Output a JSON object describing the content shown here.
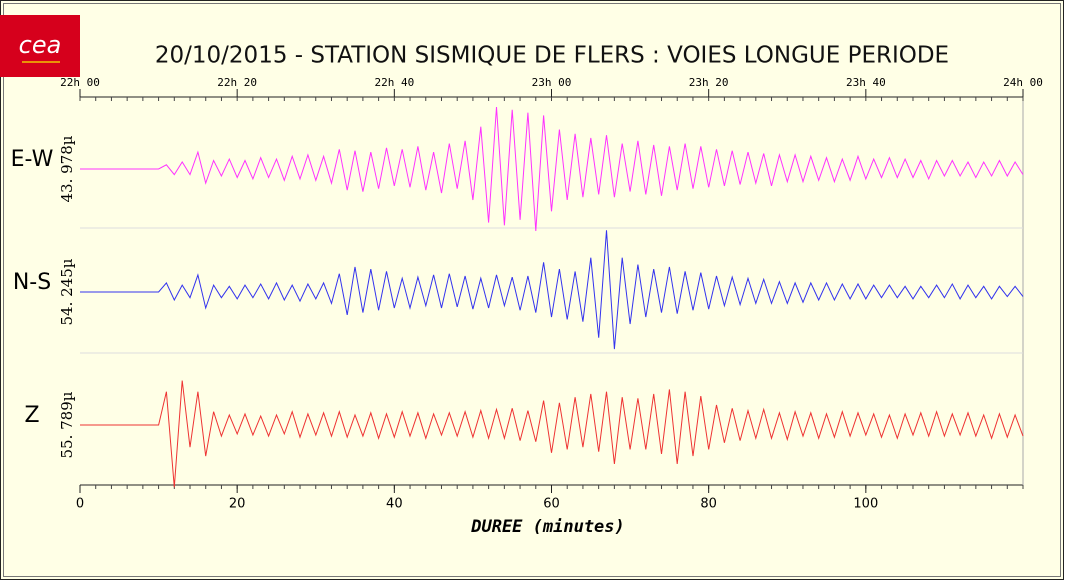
{
  "logo": "cea",
  "chart_data": {
    "type": "seismogram",
    "title": "20/10/2015  -  STATION SISMIQUE DE FLERS : VOIES LONGUE PERIODE",
    "xlabel": "DUREE (minutes)",
    "xlim": [
      0,
      120
    ],
    "xticks": [
      0,
      20,
      40,
      60,
      80,
      100
    ],
    "top_ticks": [
      {
        "value": 0,
        "label": "22h 00"
      },
      {
        "value": 20,
        "label": "22h 20"
      },
      {
        "value": 40,
        "label": "22h 40"
      },
      {
        "value": 60,
        "label": "23h 00"
      },
      {
        "value": 80,
        "label": "23h 20"
      },
      {
        "value": 100,
        "label": "23h 40"
      },
      {
        "value": 120,
        "label": "24h 00"
      }
    ],
    "x": [
      0,
      1,
      2,
      3,
      4,
      5,
      6,
      7,
      8,
      9,
      10,
      11,
      12,
      13,
      14,
      15,
      16,
      17,
      18,
      19,
      20,
      21,
      22,
      23,
      24,
      25,
      26,
      27,
      28,
      29,
      30,
      31,
      32,
      33,
      34,
      35,
      36,
      37,
      38,
      39,
      40,
      41,
      42,
      43,
      44,
      45,
      46,
      47,
      48,
      49,
      50,
      51,
      52,
      53,
      54,
      55,
      56,
      57,
      58,
      59,
      60,
      61,
      62,
      63,
      64,
      65,
      66,
      67,
      68,
      69,
      70,
      71,
      72,
      73,
      74,
      75,
      76,
      77,
      78,
      79,
      80,
      81,
      82,
      83,
      84,
      85,
      86,
      87,
      88,
      89,
      90,
      91,
      92,
      93,
      94,
      95,
      96,
      97,
      98,
      99,
      100,
      101,
      102,
      103,
      104,
      105,
      106,
      107,
      108,
      109,
      110,
      111,
      112,
      113,
      114,
      115,
      116,
      117,
      118,
      119,
      120
    ],
    "series": [
      {
        "name": "E-W",
        "color": "#ff33ff",
        "amplitude": {
          "value": 43.978,
          "label": "43. 978µ"
        },
        "values": [
          0,
          0,
          0,
          0,
          0,
          0,
          0,
          0,
          0,
          0,
          0,
          3,
          -4,
          5,
          -4,
          12,
          -10,
          6,
          -5,
          7,
          -6,
          6,
          -7,
          8,
          -6,
          7,
          -8,
          9,
          -7,
          10,
          -8,
          9,
          -10,
          14,
          -15,
          13,
          -16,
          12,
          -14,
          15,
          -12,
          14,
          -13,
          16,
          -15,
          12,
          -17,
          18,
          -14,
          20,
          -22,
          30,
          -38,
          44,
          -40,
          42,
          -36,
          40,
          -44,
          38,
          -30,
          28,
          -22,
          25,
          -20,
          22,
          -18,
          24,
          -20,
          18,
          -16,
          20,
          -18,
          17,
          -19,
          16,
          -15,
          18,
          -14,
          16,
          -13,
          14,
          -12,
          13,
          -11,
          12,
          -10,
          11,
          -12,
          10,
          -9,
          10,
          -9,
          9,
          -8,
          8,
          -9,
          7,
          -8,
          9,
          -7,
          7,
          -6,
          8,
          -6,
          7,
          -6,
          6,
          -7,
          6,
          -5,
          6,
          -5,
          5,
          -6,
          5,
          -5,
          6,
          -5,
          5,
          -4
        ]
      },
      {
        "name": "N-S",
        "color": "#3333ee",
        "amplitude": {
          "value": 54.245,
          "label": "54. 245µ"
        },
        "values": [
          0,
          0,
          0,
          0,
          0,
          0,
          0,
          0,
          0,
          0,
          0,
          8,
          -7,
          6,
          -5,
          15,
          -14,
          6,
          -5,
          5,
          -6,
          6,
          -5,
          7,
          -6,
          8,
          -7,
          6,
          -8,
          7,
          -6,
          8,
          -10,
          16,
          -20,
          22,
          -18,
          20,
          -16,
          18,
          -14,
          12,
          -14,
          13,
          -12,
          15,
          -14,
          16,
          -13,
          14,
          -15,
          12,
          -14,
          15,
          -12,
          13,
          -16,
          14,
          -18,
          26,
          -22,
          20,
          -24,
          18,
          -26,
          30,
          -40,
          54,
          -50,
          30,
          -28,
          24,
          -22,
          20,
          -18,
          22,
          -19,
          18,
          -16,
          17,
          -15,
          14,
          -12,
          13,
          -11,
          12,
          -10,
          11,
          -10,
          9,
          -10,
          8,
          -9,
          8,
          -7,
          8,
          -7,
          7,
          -6,
          7,
          -6,
          6,
          -5,
          6,
          -5,
          5,
          -6,
          5,
          -5,
          6,
          -5,
          7,
          -6,
          6,
          -5,
          5,
          -6,
          5,
          -4,
          5,
          -4
        ]
      },
      {
        "name": "Z",
        "color": "#ee3333",
        "amplitude": {
          "value": 55.789,
          "label": "55. 789µ"
        },
        "values": [
          0,
          0,
          0,
          0,
          0,
          0,
          0,
          0,
          0,
          0,
          0,
          30,
          -56,
          40,
          -20,
          30,
          -28,
          12,
          -10,
          9,
          -8,
          10,
          -9,
          8,
          -10,
          9,
          -8,
          12,
          -11,
          10,
          -9,
          11,
          -10,
          12,
          -11,
          9,
          -10,
          11,
          -12,
          10,
          -11,
          12,
          -10,
          11,
          -12,
          10,
          -9,
          11,
          -10,
          12,
          -11,
          13,
          -12,
          14,
          -12,
          15,
          -14,
          13,
          -15,
          22,
          -25,
          20,
          -22,
          25,
          -20,
          28,
          -24,
          30,
          -35,
          25,
          -22,
          24,
          -22,
          28,
          -26,
          32,
          -35,
          30,
          -28,
          26,
          -22,
          18,
          -16,
          15,
          -14,
          13,
          -12,
          14,
          -12,
          11,
          -13,
          12,
          -10,
          11,
          -12,
          10,
          -11,
          12,
          -10,
          11,
          -9,
          10,
          -11,
          9,
          -12,
          10,
          -9,
          11,
          -10,
          12,
          -10,
          10,
          -9,
          11,
          -10,
          9,
          -12,
          10,
          -11,
          9,
          -10
        ]
      }
    ]
  }
}
